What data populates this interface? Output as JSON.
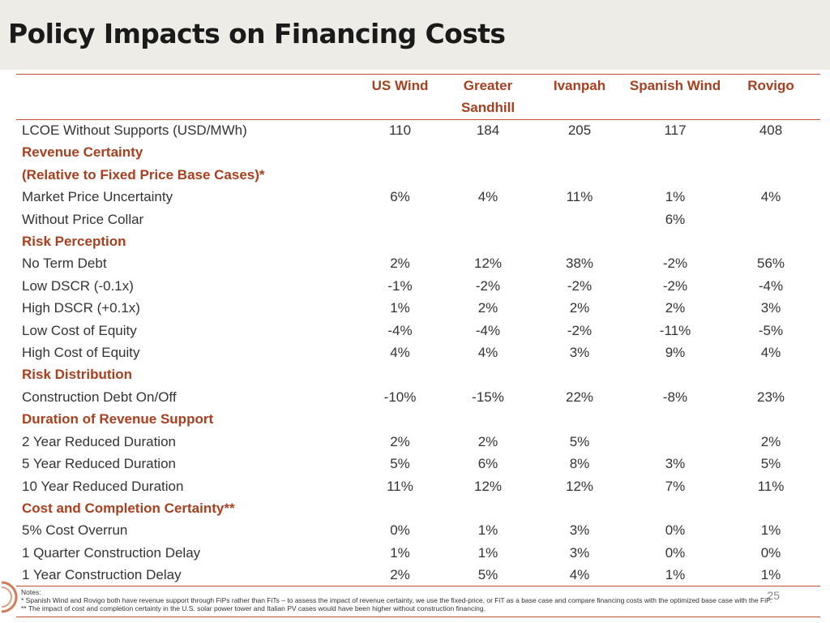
{
  "title": "Policy Impacts on Financing Costs",
  "columns": [
    "US Wind",
    "Greater Sandhill",
    "Ivanpah",
    "Spanish Wind",
    "Rovigo"
  ],
  "rows": [
    {
      "label": "LCOE Without Supports (USD/MWh)",
      "section": false,
      "values": [
        "110",
        "184",
        "205",
        "117",
        "408"
      ]
    },
    {
      "label": "Revenue Certainty",
      "section": true,
      "values": [
        "",
        "",
        "",
        "",
        ""
      ]
    },
    {
      "label": "(Relative to Fixed Price Base Cases)*",
      "section": true,
      "values": [
        "",
        "",
        "",
        "",
        ""
      ]
    },
    {
      "label": "Market Price Uncertainty",
      "section": false,
      "values": [
        "6%",
        "4%",
        "11%",
        "1%",
        "4%"
      ]
    },
    {
      "label": "Without Price Collar",
      "section": false,
      "values": [
        "",
        "",
        "",
        "6%",
        ""
      ]
    },
    {
      "label": "Risk Perception",
      "section": true,
      "values": [
        "",
        "",
        "",
        "",
        ""
      ]
    },
    {
      "label": "No Term Debt",
      "section": false,
      "values": [
        "2%",
        "12%",
        "38%",
        "-2%",
        "56%"
      ]
    },
    {
      "label": "Low DSCR (-0.1x)",
      "section": false,
      "values": [
        "-1%",
        "-2%",
        "-2%",
        "-2%",
        "-4%"
      ]
    },
    {
      "label": "High DSCR (+0.1x)",
      "section": false,
      "values": [
        "1%",
        "2%",
        "2%",
        "2%",
        "3%"
      ]
    },
    {
      "label": "Low Cost of Equity",
      "section": false,
      "values": [
        "-4%",
        "-4%",
        "-2%",
        "-11%",
        "-5%"
      ]
    },
    {
      "label": "High Cost of Equity",
      "section": false,
      "values": [
        "4%",
        "4%",
        "3%",
        "9%",
        "4%"
      ]
    },
    {
      "label": "Risk Distribution",
      "section": true,
      "values": [
        "",
        "",
        "",
        "",
        ""
      ]
    },
    {
      "label": "Construction Debt On/Off",
      "section": false,
      "values": [
        "-10%",
        "-15%",
        "22%",
        "-8%",
        "23%"
      ]
    },
    {
      "label": "Duration of Revenue Support",
      "section": true,
      "values": [
        "",
        "",
        "",
        "",
        ""
      ]
    },
    {
      "label": "2 Year Reduced Duration",
      "section": false,
      "values": [
        "2%",
        "2%",
        "5%",
        "",
        "2%"
      ]
    },
    {
      "label": "5 Year Reduced Duration",
      "section": false,
      "values": [
        "5%",
        "6%",
        "8%",
        "3%",
        "5%"
      ]
    },
    {
      "label": "10 Year Reduced Duration",
      "section": false,
      "values": [
        "11%",
        "12%",
        "12%",
        "7%",
        "11%"
      ]
    },
    {
      "label": "Cost and Completion Certainty**",
      "section": true,
      "values": [
        "",
        "",
        "",
        "",
        ""
      ]
    },
    {
      "label": "5% Cost Overrun",
      "section": false,
      "values": [
        "0%",
        "1%",
        "3%",
        "0%",
        "1%"
      ]
    },
    {
      "label": "1 Quarter Construction Delay",
      "section": false,
      "values": [
        "1%",
        "1%",
        "3%",
        "0%",
        "0%"
      ]
    },
    {
      "label": "1 Year Construction Delay",
      "section": false,
      "values": [
        "2%",
        "5%",
        "4%",
        "1%",
        "1%"
      ]
    }
  ],
  "notes": {
    "heading": "Notes:",
    "lines": [
      "* Spanish Wind and Rovigo both have revenue support through FiPs rather than FiTs – to assess the impact of revenue certainty, we use the fixed-price, or FiT as a base case and compare financing costs with the optimized base case with the FiP.",
      "** The impact of cost and completion certainty in the U.S. solar power tower and Italian PV cases would have been higher without construction financing."
    ]
  },
  "page_number": "25",
  "colors": {
    "accent": "#a6401f",
    "rule": "#c0502e",
    "title_band": "#eeece6"
  }
}
